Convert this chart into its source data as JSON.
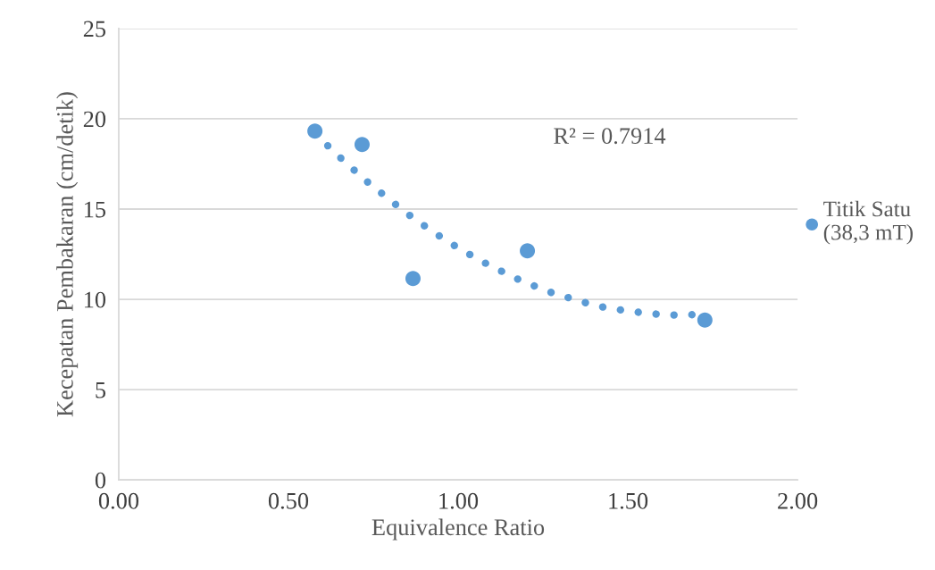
{
  "chart_data": {
    "type": "scatter",
    "xlabel": "Equivalence Ratio",
    "ylabel": "Kecepatan Pembakaran (cm/detik)",
    "xlim": [
      0,
      2
    ],
    "ylim": [
      0,
      25
    ],
    "xticks": [
      {
        "value": 0,
        "label": "0.00"
      },
      {
        "value": 0.5,
        "label": "0.50"
      },
      {
        "value": 1,
        "label": "1.00"
      },
      {
        "value": 1.5,
        "label": "1.50"
      },
      {
        "value": 2,
        "label": "2.00"
      }
    ],
    "yticks": [
      0,
      5,
      10,
      15,
      20,
      25
    ],
    "grid": "y",
    "legend": "right",
    "annotations": [
      "R² = 0.7914"
    ],
    "series": [
      {
        "name": "Titik Satu\n(38,3 mT)",
        "marker": "circle",
        "color": "#5b9bd5",
        "x": [
          0.578,
          0.717,
          0.867,
          1.204,
          1.727
        ],
        "values": [
          19.32,
          18.58,
          11.15,
          12.69,
          8.85
        ]
      },
      {
        "type": "line",
        "line_style": "dotted",
        "color": "#5b9bd5",
        "x": [
          0.578,
          0.619,
          0.66,
          0.701,
          0.744,
          0.788,
          0.832,
          0.876,
          0.922,
          0.969,
          1.017,
          1.066,
          1.116,
          1.166,
          1.218,
          1.27,
          1.324,
          1.378,
          1.432,
          1.487,
          1.542,
          1.598,
          1.653,
          1.709,
          1.727
        ],
        "values": [
          19.2,
          18.45,
          17.72,
          17.03,
          16.32,
          15.68,
          15.01,
          14.39,
          13.8,
          13.2,
          12.67,
          12.14,
          11.67,
          11.2,
          10.79,
          10.41,
          10.1,
          9.8,
          9.55,
          9.39,
          9.26,
          9.16,
          9.12,
          9.17,
          9.2
        ]
      }
    ]
  }
}
